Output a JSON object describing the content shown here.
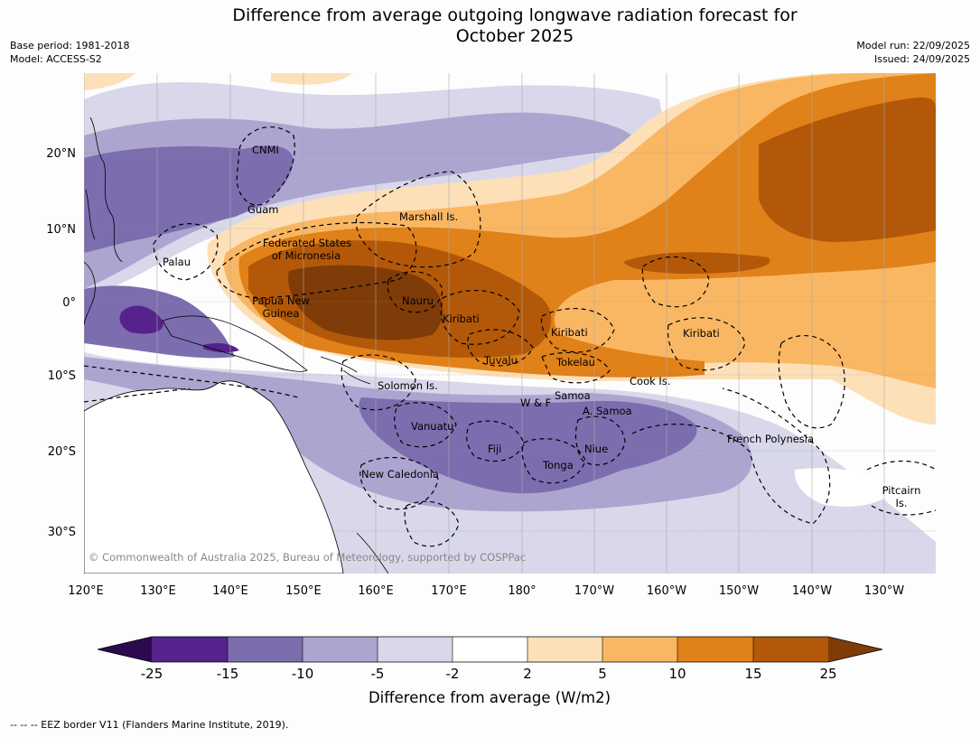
{
  "title_line1": "Difference from average outgoing longwave radiation forecast for",
  "title_line2": "October 2025",
  "meta_left": {
    "base_period": "Base period: 1981-2018",
    "model": "Model: ACCESS-S2"
  },
  "meta_right": {
    "model_run": "Model run: 22/09/2025",
    "issued": "Issued: 24/09/2025"
  },
  "lat_labels": [
    "20°N",
    "10°N",
    "0°",
    "10°S",
    "20°S",
    "30°S"
  ],
  "lon_labels": [
    "120°E",
    "130°E",
    "140°E",
    "150°E",
    "160°E",
    "170°E",
    "180°",
    "170°W",
    "160°W",
    "150°W",
    "140°W",
    "130°W"
  ],
  "places": {
    "cnmi": "CNMI",
    "guam": "Guam",
    "palau": "Palau",
    "marshall": "Marshall Is.",
    "fsm1": "Federated States",
    "fsm2": "of Micronesia",
    "png1": "Papua New",
    "png2": "Guinea",
    "nauru": "Nauru",
    "kiribati1": "Kiribati",
    "kiribati2": "Kiribati",
    "kiribati3": "Kiribati",
    "tuvalu": "Tuvalu",
    "tokelau": "Tokelau",
    "cook": "Cook Is.",
    "solomon": "Solomon Is.",
    "wf": "W & F",
    "samoa": "Samoa",
    "asamoa": "A. Samoa",
    "vanuatu": "Vanuatu",
    "fiji": "Fiji",
    "niue": "Niue",
    "tonga": "Tonga",
    "newcal": "New Caledonia",
    "frenchpoly": "French Polynesia",
    "pitcairn1": "Pitcairn",
    "pitcairn2": "Is."
  },
  "copyright": "© Commonwealth of Australia 2025, Bureau of Meteorology, supported by COSPPac",
  "colorbar": {
    "tick_labels": [
      "-25",
      "-15",
      "-10",
      "-5",
      "-2",
      "2",
      "5",
      "10",
      "15",
      "25"
    ],
    "label": "Difference from average (W/m2)",
    "colors": {
      "below_min": "#2d0a4f",
      "c1": "#55238b",
      "c2": "#7c6daf",
      "c3": "#aba5d0",
      "c4": "#d8d8ea",
      "neutral": "#ffffff",
      "c6": "#fde0b8",
      "c7": "#fab763",
      "c8": "#e08119",
      "c9": "#b35808",
      "above_max": "#7f3b08"
    }
  },
  "footnote": "--  --  -- EEZ border V11 (Flanders Marine Institute, 2019)."
}
